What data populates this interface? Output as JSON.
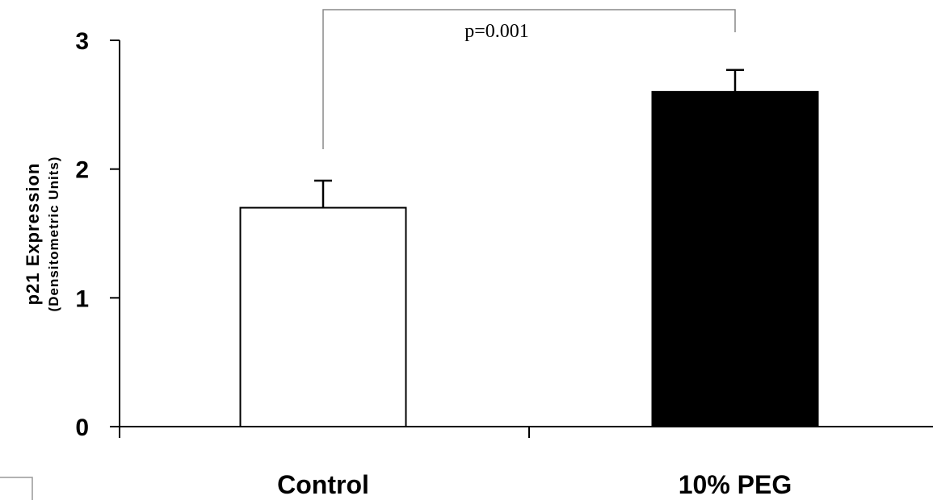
{
  "chart_data": {
    "type": "bar",
    "categories": [
      "Control",
      "10% PEG"
    ],
    "values": [
      1.7,
      2.6
    ],
    "errors": [
      0.21,
      0.17
    ],
    "bar_colors": [
      "#ffffff",
      "#000000"
    ],
    "ylabel": "p21 Expression",
    "ylabel_sub": "(Densitometric Units)",
    "xlabel": "",
    "ylim": [
      0,
      3
    ],
    "yticks": [
      "0",
      "1",
      "2",
      "3"
    ],
    "grid": false,
    "annotation": {
      "text": "p=0.001",
      "between": [
        "Control",
        "10% PEG"
      ]
    }
  }
}
